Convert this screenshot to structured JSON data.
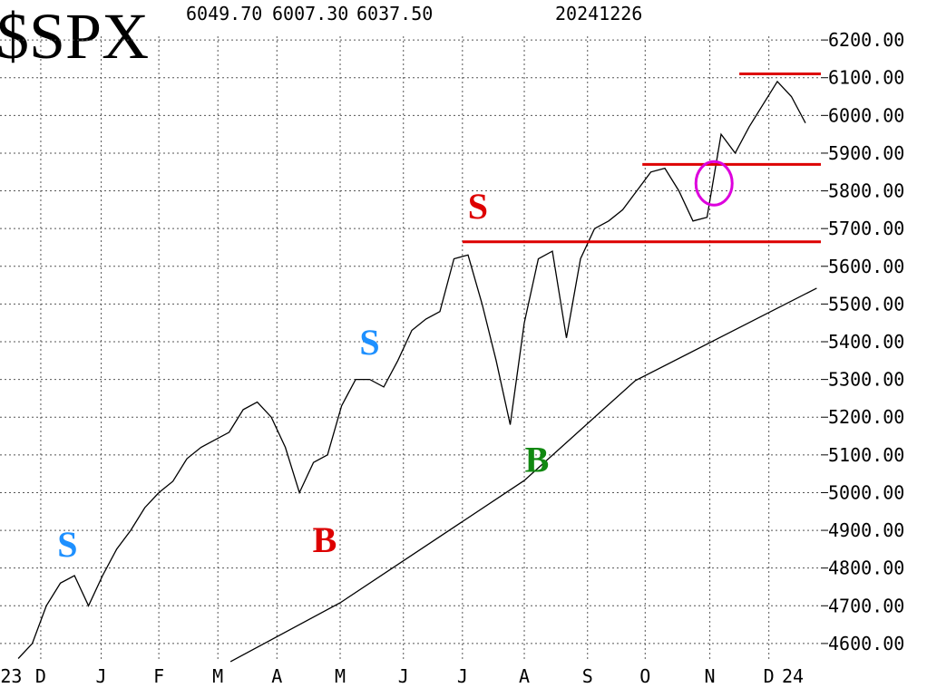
{
  "chart_data": {
    "type": "line",
    "title": "$SPX",
    "header": [
      "6049.70",
      "6007.30",
      "6037.50",
      "20241226"
    ],
    "xlim": [
      -1.3,
      57.1
    ],
    "ylim": [
      4482,
      6306
    ],
    "yticks": [
      {
        "value": 4600,
        "label": "4600.00"
      },
      {
        "value": 4700,
        "label": "4700.00"
      },
      {
        "value": 4800,
        "label": "4800.00"
      },
      {
        "value": 4900,
        "label": "4900.00"
      },
      {
        "value": 5000,
        "label": "5000.00"
      },
      {
        "value": 5100,
        "label": "5100.00"
      },
      {
        "value": 5200,
        "label": "5200.00"
      },
      {
        "value": 5300,
        "label": "5300.00"
      },
      {
        "value": 5400,
        "label": "5400.00"
      },
      {
        "value": 5500,
        "label": "5500.00"
      },
      {
        "value": 5600,
        "label": "5600.00"
      },
      {
        "value": 5700,
        "label": "5700.00"
      },
      {
        "value": 5800,
        "label": "5800.00"
      },
      {
        "value": 5900,
        "label": "5900.00"
      },
      {
        "value": 6000,
        "label": "6000.00"
      },
      {
        "value": 6100,
        "label": "6100.00"
      },
      {
        "value": 6200,
        "label": "6200.00"
      }
    ],
    "xticks": [
      {
        "value": -0.5,
        "label": "23"
      },
      {
        "value": 1.6,
        "label": "D"
      },
      {
        "value": 5.9,
        "label": "J"
      },
      {
        "value": 10,
        "label": "F"
      },
      {
        "value": 14.2,
        "label": "M"
      },
      {
        "value": 18.4,
        "label": "A"
      },
      {
        "value": 22.9,
        "label": "M"
      },
      {
        "value": 27.4,
        "label": "J"
      },
      {
        "value": 31.6,
        "label": "J"
      },
      {
        "value": 36,
        "label": "A"
      },
      {
        "value": 40.5,
        "label": "S"
      },
      {
        "value": 44.6,
        "label": "O"
      },
      {
        "value": 49.2,
        "label": "N"
      },
      {
        "value": 53.4,
        "label": "D"
      },
      {
        "value": 55.1,
        "label": "24"
      }
    ],
    "grid": true,
    "series": [
      {
        "color": "#000000",
        "x": [
          0,
          1,
          2,
          3,
          4,
          5,
          6,
          7,
          8,
          9,
          10,
          11,
          12,
          13,
          14,
          15,
          16,
          17,
          18,
          19,
          20,
          21,
          22,
          23,
          24,
          25,
          26,
          27,
          28,
          29,
          30,
          31,
          32,
          33,
          34,
          35,
          36,
          37,
          38,
          39,
          40,
          41,
          42,
          43,
          44,
          45,
          46,
          47,
          48,
          49,
          50,
          51,
          52,
          53,
          54,
          55,
          56
        ],
        "values": [
          4560,
          4600,
          4700,
          4760,
          4780,
          4700,
          4780,
          4850,
          4900,
          4960,
          5000,
          5030,
          5090,
          5120,
          5140,
          5160,
          5220,
          5240,
          5200,
          5120,
          5000,
          5080,
          5100,
          5230,
          5300,
          5300,
          5280,
          5350,
          5430,
          5460,
          5480,
          5620,
          5630,
          5500,
          5350,
          5180,
          5450,
          5620,
          5640,
          5410,
          5620,
          5700,
          5720,
          5750,
          5800,
          5850,
          5860,
          5800,
          5720,
          5730,
          5950,
          5900,
          5970,
          6030,
          6090,
          6050,
          5980
        ]
      },
      {
        "color": "#000000",
        "x": [
          15.1,
          22.9,
          36,
          43.9,
          56.8
        ],
        "values": [
          4552,
          4708,
          5032,
          5297,
          5542
        ]
      }
    ],
    "levels": [
      {
        "value": 5665,
        "from": 31.6,
        "color": "#dd0000"
      },
      {
        "value": 5870,
        "from": 44.4,
        "color": "#dd0000"
      },
      {
        "value": 6110,
        "from": 51.3,
        "color": "#dd0000"
      }
    ],
    "signals": [
      {
        "label": "S",
        "x": 3.5,
        "y": 4864,
        "color": "#1e90ff"
      },
      {
        "label": "B",
        "x": 21.8,
        "y": 4876,
        "color": "#dd0000"
      },
      {
        "label": "S",
        "x": 25,
        "y": 5400,
        "color": "#1e90ff"
      },
      {
        "label": "S",
        "x": 32.7,
        "y": 5761,
        "color": "#dd0000"
      },
      {
        "label": "B",
        "x": 36.9,
        "y": 5089,
        "color": "#118811"
      }
    ],
    "circle": {
      "x": 49.5,
      "y": 5820,
      "color": "#dd00dd"
    }
  }
}
